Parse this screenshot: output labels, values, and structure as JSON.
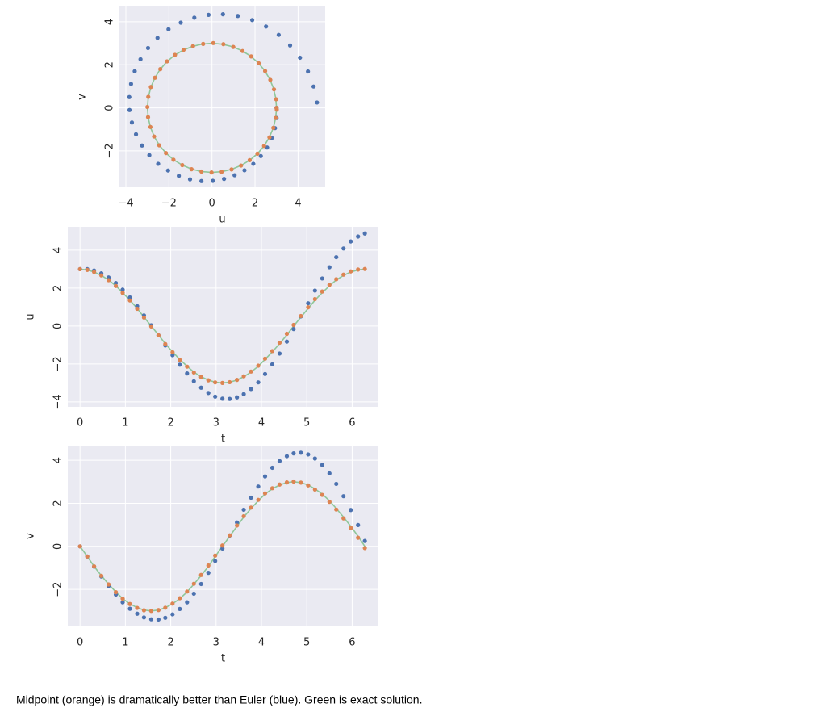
{
  "chart_data": [
    {
      "type": "scatter",
      "xlabel": "u",
      "ylabel": "v",
      "xlim": [
        -4.3,
        5.26
      ],
      "ylim": [
        -3.69,
        4.71
      ],
      "xticks": [
        {
          "value": -4,
          "label": "−4"
        },
        {
          "value": -2,
          "label": "−2"
        },
        0,
        2,
        4
      ],
      "yticks": [
        {
          "value": -2,
          "label": "−2"
        },
        0,
        2,
        4
      ],
      "grid": true,
      "series": [
        {
          "type": "line",
          "color": "#8fc79a",
          "x": [
            3,
            2.96,
            2.85,
            2.67,
            2.43,
            2.12,
            1.76,
            1.36,
            0.93,
            0.47,
            0,
            -0.47,
            -0.93,
            -1.36,
            -1.76,
            -2.12,
            -2.43,
            -2.67,
            -2.85,
            -2.96,
            -3,
            -2.96,
            -2.85,
            -2.67,
            -2.43,
            -2.12,
            -1.76,
            -1.36,
            -0.93,
            -0.47,
            0,
            0.47,
            0.93,
            1.36,
            1.76,
            2.12,
            2.43,
            2.67,
            2.85,
            2.96,
            3
          ],
          "values": [
            0,
            -0.47,
            -0.93,
            -1.36,
            -1.76,
            -2.12,
            -2.43,
            -2.67,
            -2.85,
            -2.96,
            -3,
            -2.96,
            -2.85,
            -2.67,
            -2.43,
            -2.12,
            -1.76,
            -1.36,
            -0.93,
            -0.47,
            0,
            0.47,
            0.93,
            1.36,
            1.76,
            2.12,
            2.43,
            2.67,
            2.85,
            2.96,
            3,
            2.96,
            2.85,
            2.67,
            2.43,
            2.12,
            1.76,
            1.36,
            0.93,
            0.47,
            0
          ]
        },
        {
          "type": "scatter",
          "color": "#4c72b0",
          "x": [
            3,
            3,
            2.93,
            2.78,
            2.56,
            2.27,
            1.92,
            1.51,
            1.05,
            0.56,
            0.04,
            -0.49,
            -1.02,
            -1.54,
            -2.04,
            -2.5,
            -2.91,
            -3.25,
            -3.53,
            -3.72,
            -3.83,
            -3.84,
            -3.76,
            -3.59,
            -3.32,
            -2.97,
            -2.53,
            -2.02,
            -1.45,
            -0.82,
            -0.16,
            0.51,
            1.2,
            1.87,
            2.51,
            3.1,
            3.63,
            4.09,
            4.46,
            4.72,
            4.88
          ],
          "values": [
            0,
            -0.47,
            -0.94,
            -1.4,
            -1.84,
            -2.24,
            -2.6,
            -2.9,
            -3.13,
            -3.3,
            -3.39,
            -3.4,
            -3.32,
            -3.16,
            -2.91,
            -2.6,
            -2.2,
            -1.75,
            -1.23,
            -0.68,
            -0.1,
            0.5,
            1.11,
            1.7,
            2.26,
            2.78,
            3.25,
            3.65,
            3.96,
            4.19,
            4.32,
            4.35,
            4.27,
            4.08,
            3.78,
            3.39,
            2.9,
            2.33,
            1.69,
            0.99,
            0.25
          ]
        },
        {
          "type": "scatter",
          "color": "#dd8452",
          "x": [
            3,
            2.96,
            2.85,
            2.67,
            2.42,
            2.11,
            1.75,
            1.35,
            0.91,
            0.45,
            -0.02,
            -0.49,
            -0.95,
            -1.38,
            -1.79,
            -2.14,
            -2.45,
            -2.69,
            -2.86,
            -2.97,
            -3,
            -2.96,
            -2.84,
            -2.65,
            -2.4,
            -2.09,
            -1.72,
            -1.32,
            -0.88,
            -0.41,
            0.06,
            0.53,
            0.99,
            1.42,
            1.82,
            2.17,
            2.47,
            2.71,
            2.88,
            2.98,
            3.01
          ],
          "values": [
            0,
            -0.47,
            -0.93,
            -1.37,
            -1.77,
            -2.13,
            -2.43,
            -2.68,
            -2.86,
            -2.97,
            -3,
            -2.96,
            -2.85,
            -2.66,
            -2.41,
            -2.1,
            -1.74,
            -1.33,
            -0.89,
            -0.43,
            0.04,
            0.51,
            0.97,
            1.4,
            1.8,
            2.16,
            2.46,
            2.7,
            2.87,
            2.97,
            3.01,
            2.96,
            2.83,
            2.64,
            2.39,
            2.07,
            1.71,
            1.3,
            0.86,
            0.4,
            -0.08
          ]
        }
      ]
    },
    {
      "type": "scatter",
      "xlabel": "t",
      "ylabel": "u",
      "xlim": [
        -0.27,
        6.58
      ],
      "ylim": [
        -4.26,
        5.23
      ],
      "xticks": [
        0,
        1,
        2,
        3,
        4,
        5,
        6
      ],
      "yticks": [
        {
          "value": -4,
          "label": "−4"
        },
        {
          "value": -2,
          "label": "−2"
        },
        0,
        2,
        4
      ],
      "grid": true,
      "x": [
        0,
        0.16,
        0.31,
        0.47,
        0.63,
        0.79,
        0.94,
        1.1,
        1.26,
        1.41,
        1.57,
        1.73,
        1.88,
        2.04,
        2.2,
        2.36,
        2.51,
        2.67,
        2.83,
        2.98,
        3.14,
        3.3,
        3.46,
        3.61,
        3.77,
        3.93,
        4.08,
        4.24,
        4.4,
        4.56,
        4.71,
        4.87,
        5.03,
        5.18,
        5.34,
        5.5,
        5.65,
        5.81,
        5.97,
        6.13,
        6.28
      ],
      "series": [
        {
          "type": "line",
          "color": "#8fc79a",
          "values": [
            3,
            2.96,
            2.85,
            2.67,
            2.43,
            2.12,
            1.76,
            1.36,
            0.93,
            0.47,
            0,
            -0.47,
            -0.93,
            -1.36,
            -1.76,
            -2.12,
            -2.43,
            -2.67,
            -2.85,
            -2.96,
            -3,
            -2.96,
            -2.85,
            -2.67,
            -2.43,
            -2.12,
            -1.76,
            -1.36,
            -0.93,
            -0.47,
            0,
            0.47,
            0.93,
            1.36,
            1.76,
            2.12,
            2.43,
            2.67,
            2.85,
            2.96,
            3
          ]
        },
        {
          "type": "scatter",
          "color": "#4c72b0",
          "values": [
            3,
            3,
            2.93,
            2.78,
            2.56,
            2.27,
            1.92,
            1.51,
            1.05,
            0.56,
            0.04,
            -0.49,
            -1.02,
            -1.54,
            -2.04,
            -2.5,
            -2.91,
            -3.25,
            -3.53,
            -3.72,
            -3.83,
            -3.84,
            -3.76,
            -3.59,
            -3.32,
            -2.97,
            -2.53,
            -2.02,
            -1.45,
            -0.82,
            -0.16,
            0.51,
            1.2,
            1.87,
            2.51,
            3.1,
            3.63,
            4.09,
            4.46,
            4.72,
            4.88
          ]
        },
        {
          "type": "scatter",
          "color": "#dd8452",
          "values": [
            3,
            2.96,
            2.85,
            2.67,
            2.42,
            2.11,
            1.75,
            1.35,
            0.91,
            0.45,
            -0.02,
            -0.49,
            -0.95,
            -1.38,
            -1.79,
            -2.14,
            -2.45,
            -2.69,
            -2.86,
            -2.97,
            -3,
            -2.96,
            -2.84,
            -2.65,
            -2.4,
            -2.09,
            -1.72,
            -1.32,
            -0.88,
            -0.41,
            0.06,
            0.53,
            0.99,
            1.42,
            1.82,
            2.17,
            2.47,
            2.71,
            2.88,
            2.98,
            3.01
          ]
        }
      ]
    },
    {
      "type": "scatter",
      "xlabel": "t",
      "ylabel": "v",
      "xlim": [
        -0.27,
        6.58
      ],
      "ylim": [
        -3.72,
        4.68
      ],
      "xticks": [
        0,
        1,
        2,
        3,
        4,
        5,
        6
      ],
      "yticks": [
        {
          "value": -2,
          "label": "−2"
        },
        0,
        2,
        4
      ],
      "grid": true,
      "x": [
        0,
        0.16,
        0.31,
        0.47,
        0.63,
        0.79,
        0.94,
        1.1,
        1.26,
        1.41,
        1.57,
        1.73,
        1.88,
        2.04,
        2.2,
        2.36,
        2.51,
        2.67,
        2.83,
        2.98,
        3.14,
        3.3,
        3.46,
        3.61,
        3.77,
        3.93,
        4.08,
        4.24,
        4.4,
        4.56,
        4.71,
        4.87,
        5.03,
        5.18,
        5.34,
        5.5,
        5.65,
        5.81,
        5.97,
        6.13,
        6.28
      ],
      "series": [
        {
          "type": "line",
          "color": "#8fc79a",
          "values": [
            0,
            -0.47,
            -0.93,
            -1.36,
            -1.76,
            -2.12,
            -2.43,
            -2.67,
            -2.85,
            -2.96,
            -3,
            -2.96,
            -2.85,
            -2.67,
            -2.43,
            -2.12,
            -1.76,
            -1.36,
            -0.93,
            -0.47,
            0,
            0.47,
            0.93,
            1.36,
            1.76,
            2.12,
            2.43,
            2.67,
            2.85,
            2.96,
            3,
            2.96,
            2.85,
            2.67,
            2.43,
            2.12,
            1.76,
            1.36,
            0.93,
            0.47,
            0
          ]
        },
        {
          "type": "scatter",
          "color": "#4c72b0",
          "values": [
            0,
            -0.47,
            -0.94,
            -1.4,
            -1.84,
            -2.24,
            -2.6,
            -2.9,
            -3.13,
            -3.3,
            -3.39,
            -3.4,
            -3.32,
            -3.16,
            -2.91,
            -2.6,
            -2.2,
            -1.75,
            -1.23,
            -0.68,
            -0.1,
            0.5,
            1.11,
            1.7,
            2.26,
            2.78,
            3.25,
            3.65,
            3.96,
            4.19,
            4.32,
            4.35,
            4.27,
            4.08,
            3.78,
            3.39,
            2.9,
            2.33,
            1.69,
            0.99,
            0.25
          ]
        },
        {
          "type": "scatter",
          "color": "#dd8452",
          "values": [
            0,
            -0.47,
            -0.93,
            -1.37,
            -1.77,
            -2.13,
            -2.43,
            -2.68,
            -2.86,
            -2.97,
            -3,
            -2.96,
            -2.85,
            -2.66,
            -2.41,
            -2.1,
            -1.74,
            -1.33,
            -0.89,
            -0.43,
            0.04,
            0.51,
            0.97,
            1.4,
            1.8,
            2.16,
            2.46,
            2.7,
            2.87,
            2.97,
            3.01,
            2.96,
            2.83,
            2.64,
            2.39,
            2.07,
            1.71,
            1.3,
            0.86,
            0.4,
            -0.08
          ]
        }
      ]
    }
  ],
  "caption": "Midpoint (orange) is dramatically better than Euler (blue). Green is exact solution."
}
